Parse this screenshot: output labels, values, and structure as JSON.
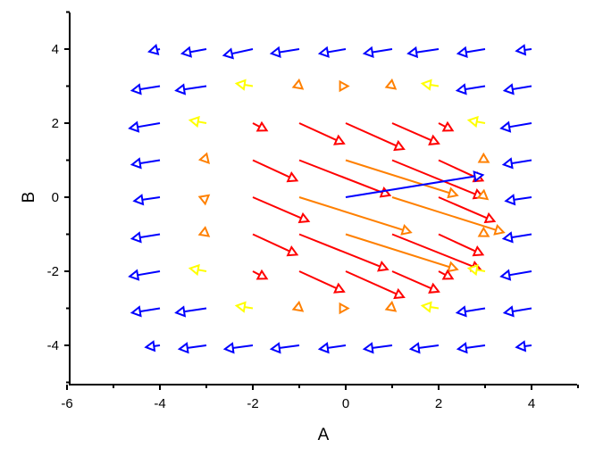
{
  "chart_data": {
    "type": "vector",
    "title": "",
    "xlabel": "A",
    "ylabel": "B",
    "xlim": [
      -6,
      5
    ],
    "ylim": [
      -5,
      5
    ],
    "xticks": [
      -6,
      -4,
      -2,
      0,
      2,
      4
    ],
    "yticks": [
      -4,
      -2,
      0,
      2,
      4
    ],
    "xminor": [
      -5,
      -3,
      -1,
      1,
      3,
      5
    ],
    "yminor": [
      -5,
      -3,
      -1,
      1,
      3,
      5
    ],
    "grid": false,
    "legend": null,
    "colors": {
      "blue": "#0000FF",
      "red": "#FF0000",
      "orange": "#FF8000",
      "yellow": "#FFFF00"
    },
    "vectors_format": [
      "x_tail",
      "y_tail",
      "x_head",
      "y_head",
      "color"
    ],
    "vectors": [
      [
        -4,
        4,
        -4.23,
        3.93,
        "blue"
      ],
      [
        -3,
        4,
        -3.52,
        3.88,
        "blue"
      ],
      [
        -2,
        4,
        -2.62,
        3.83,
        "blue"
      ],
      [
        -1,
        4,
        -1.6,
        3.88,
        "blue"
      ],
      [
        0,
        4,
        -0.56,
        3.88,
        "blue"
      ],
      [
        1,
        4,
        0.4,
        3.88,
        "blue"
      ],
      [
        2,
        4,
        1.35,
        3.88,
        "blue"
      ],
      [
        3,
        4,
        2.42,
        3.88,
        "blue"
      ],
      [
        4,
        4,
        3.68,
        3.95,
        "blue"
      ],
      [
        -4,
        3,
        -4.6,
        2.88,
        "blue"
      ],
      [
        -3,
        3,
        -3.65,
        2.88,
        "blue"
      ],
      [
        -2,
        3,
        -2.35,
        3.07,
        "yellow"
      ],
      [
        -1,
        3,
        -0.93,
        2.93,
        "orange"
      ],
      [
        0,
        3,
        0.05,
        3.0,
        "orange"
      ],
      [
        1,
        3,
        1.07,
        2.93,
        "orange"
      ],
      [
        2,
        3,
        1.65,
        3.07,
        "yellow"
      ],
      [
        3,
        3,
        2.4,
        2.88,
        "blue"
      ],
      [
        4,
        3,
        3.42,
        2.88,
        "blue"
      ],
      [
        -4,
        2,
        -4.65,
        1.86,
        "blue"
      ],
      [
        -3,
        2,
        -3.35,
        2.08,
        "yellow"
      ],
      [
        -2,
        2,
        -1.7,
        1.8,
        "red"
      ],
      [
        -1,
        2,
        -0.04,
        1.45,
        "red"
      ],
      [
        0,
        2,
        1.25,
        1.3,
        "red"
      ],
      [
        1,
        2,
        2.0,
        1.45,
        "red"
      ],
      [
        2,
        2,
        2.3,
        1.8,
        "red"
      ],
      [
        3,
        2,
        2.65,
        2.08,
        "yellow"
      ],
      [
        4,
        2,
        3.35,
        1.86,
        "blue"
      ],
      [
        -4,
        1,
        -4.6,
        0.88,
        "blue"
      ],
      [
        -3,
        1,
        -2.95,
        0.93,
        "orange"
      ],
      [
        -2,
        1,
        -1.05,
        0.45,
        "red"
      ],
      [
        -1,
        1,
        0.95,
        0.05,
        "red"
      ],
      [
        0,
        1,
        2.4,
        0.05,
        "orange"
      ],
      [
        1,
        1,
        2.95,
        0.0,
        "red"
      ],
      [
        2,
        1,
        2.95,
        0.45,
        "red"
      ],
      [
        3,
        1,
        3.07,
        0.95,
        "orange"
      ],
      [
        4,
        1,
        3.4,
        0.88,
        "blue"
      ],
      [
        -4,
        0,
        -4.55,
        -0.1,
        "blue"
      ],
      [
        -3,
        0,
        -2.95,
        0.05,
        "orange"
      ],
      [
        -2,
        0,
        -0.8,
        -0.65,
        "red"
      ],
      [
        -1,
        0,
        1.4,
        -0.95,
        "orange"
      ],
      [
        0,
        0,
        2.95,
        0.6,
        "blue"
      ],
      [
        1,
        0,
        3.4,
        -0.95,
        "orange"
      ],
      [
        2,
        0,
        3.2,
        -0.65,
        "red"
      ],
      [
        3,
        0,
        3.05,
        -0.05,
        "orange"
      ],
      [
        4,
        0,
        3.45,
        -0.1,
        "blue"
      ],
      [
        -4,
        -1,
        -4.6,
        -1.12,
        "blue"
      ],
      [
        -3,
        -1,
        -2.95,
        -1.05,
        "orange"
      ],
      [
        -2,
        -1,
        -1.05,
        -1.55,
        "red"
      ],
      [
        -1,
        -1,
        0.9,
        -1.95,
        "red"
      ],
      [
        0,
        -1,
        2.4,
        -1.95,
        "orange"
      ],
      [
        1,
        -1,
        2.9,
        -1.95,
        "red"
      ],
      [
        2,
        -1,
        2.95,
        -1.55,
        "red"
      ],
      [
        3,
        -1,
        3.07,
        -1.05,
        "orange"
      ],
      [
        4,
        -1,
        3.4,
        -1.12,
        "blue"
      ],
      [
        -4,
        -2,
        -4.65,
        -2.14,
        "blue"
      ],
      [
        -3,
        -2,
        -3.35,
        -1.92,
        "yellow"
      ],
      [
        -2,
        -2,
        -1.7,
        -2.2,
        "red"
      ],
      [
        -1,
        -2,
        -0.04,
        -2.55,
        "red"
      ],
      [
        0,
        -2,
        1.25,
        -2.7,
        "red"
      ],
      [
        1,
        -2,
        2.0,
        -2.55,
        "red"
      ],
      [
        2,
        -2,
        2.3,
        -2.2,
        "red"
      ],
      [
        3,
        -2,
        2.65,
        -1.92,
        "yellow"
      ],
      [
        4,
        -2,
        3.35,
        -2.14,
        "blue"
      ],
      [
        -4,
        -3,
        -4.6,
        -3.12,
        "blue"
      ],
      [
        -3,
        -3,
        -3.65,
        -3.12,
        "blue"
      ],
      [
        -2,
        -3,
        -2.35,
        -2.93,
        "yellow"
      ],
      [
        -1,
        -3,
        -0.93,
        -3.07,
        "orange"
      ],
      [
        0,
        -3,
        0.05,
        -3.0,
        "orange"
      ],
      [
        1,
        -3,
        1.07,
        -3.07,
        "orange"
      ],
      [
        2,
        -3,
        1.65,
        -2.93,
        "yellow"
      ],
      [
        3,
        -3,
        2.4,
        -3.12,
        "blue"
      ],
      [
        4,
        -3,
        3.42,
        -3.12,
        "blue"
      ],
      [
        -4,
        -4,
        -4.3,
        -4.05,
        "blue"
      ],
      [
        -3,
        -4,
        -3.58,
        -4.1,
        "blue"
      ],
      [
        -2,
        -4,
        -2.6,
        -4.1,
        "blue"
      ],
      [
        -1,
        -4,
        -1.6,
        -4.1,
        "blue"
      ],
      [
        0,
        -4,
        -0.56,
        -4.1,
        "blue"
      ],
      [
        1,
        -4,
        0.4,
        -4.1,
        "blue"
      ],
      [
        2,
        -4,
        1.4,
        -4.1,
        "blue"
      ],
      [
        3,
        -4,
        2.42,
        -4.1,
        "blue"
      ],
      [
        4,
        -4,
        3.68,
        -4.05,
        "blue"
      ]
    ]
  }
}
